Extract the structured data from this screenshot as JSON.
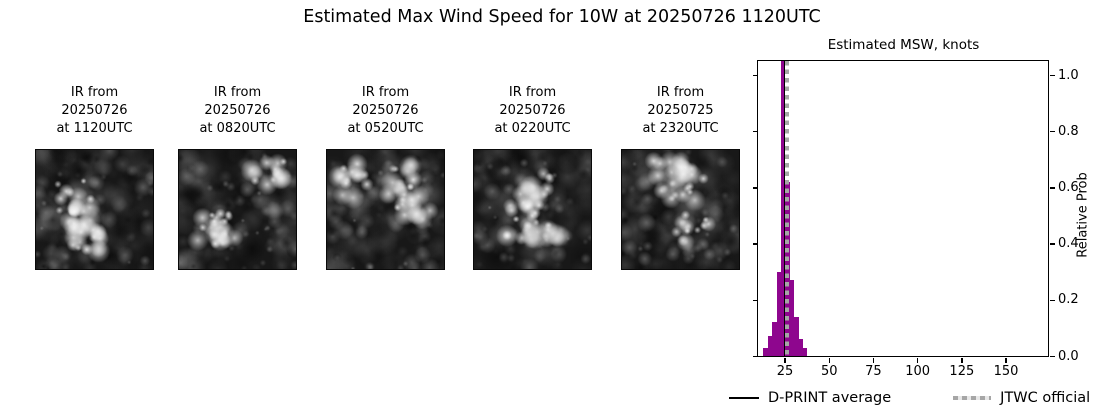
{
  "figure": {
    "title": "Estimated Max Wind Speed for 10W at 20250726 1120UTC"
  },
  "panels": [
    {
      "lines": [
        "IR from",
        "20250726",
        "at 1120UTC"
      ]
    },
    {
      "lines": [
        "IR from",
        "20250726",
        "at 0820UTC"
      ]
    },
    {
      "lines": [
        "IR from",
        "20250726",
        "at 0520UTC"
      ]
    },
    {
      "lines": [
        "IR from",
        "20250726",
        "at 0220UTC"
      ]
    },
    {
      "lines": [
        "IR from",
        "20250725",
        "at 2320UTC"
      ]
    }
  ],
  "chart_data": {
    "type": "bar",
    "title": "Estimated MSW, knots",
    "xlabel": "",
    "ylabel": "Relative Prob",
    "xlim": [
      10,
      174
    ],
    "ylim": [
      0,
      1.05
    ],
    "xticks": [
      25,
      50,
      75,
      100,
      125,
      150
    ],
    "ytick_labels": [
      "0.0",
      "0.2",
      "0.4",
      "0.6",
      "0.8",
      "1.0"
    ],
    "ytick_values": [
      0.0,
      0.2,
      0.4,
      0.6,
      0.8,
      1.0
    ],
    "grid": false,
    "bar_color": "#8e068e",
    "bin_edges_knots": [
      13,
      15.5,
      18,
      20.5,
      23,
      25.5,
      28,
      30.5,
      33,
      35.5,
      38
    ],
    "bar_heights_relative_prob": [
      0.03,
      0.07,
      0.12,
      0.3,
      1.05,
      0.62,
      0.27,
      0.14,
      0.06,
      0.03
    ],
    "vlines": [
      {
        "name": "D-PRINT average",
        "value_knots": 25.0,
        "color": "#000000",
        "style": "solid"
      },
      {
        "name": "JTWC official",
        "value_knots": 26.3,
        "color": "#a6a6a6",
        "style": "dotted"
      }
    ],
    "legend": [
      "D-PRINT average",
      "JTWC official"
    ],
    "legend_position": "below"
  }
}
